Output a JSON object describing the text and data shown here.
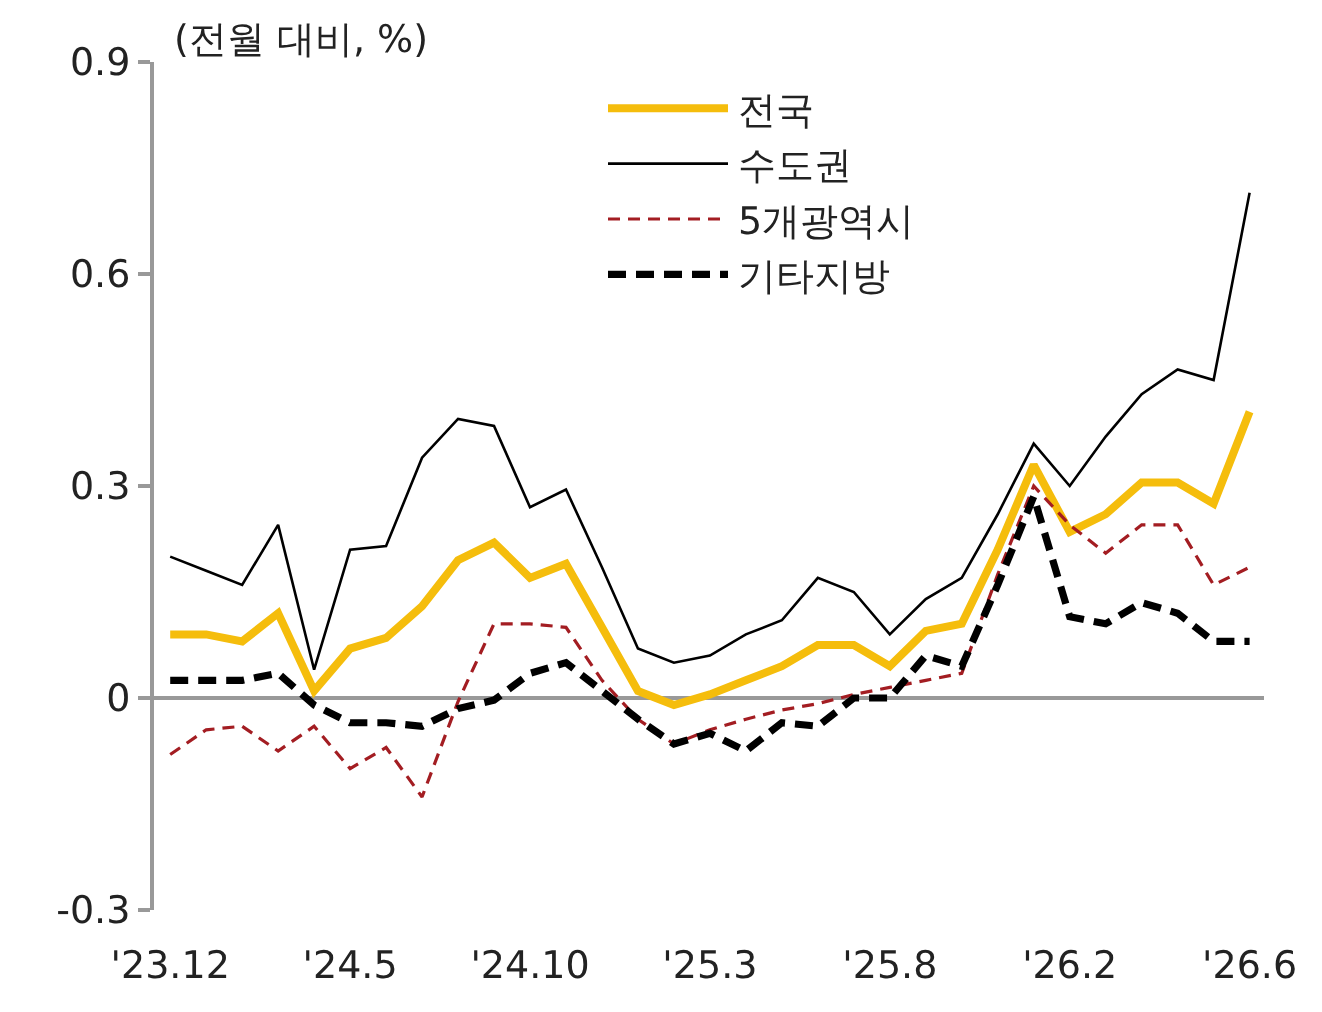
{
  "chart_data": {
    "type": "line",
    "annotations": [
      "(전월 대비, %)"
    ],
    "categories": [
      "'23.12",
      null,
      null,
      null,
      null,
      "'24.5",
      null,
      null,
      null,
      null,
      "'24.10",
      null,
      null,
      null,
      null,
      "'25.3",
      null,
      null,
      null,
      null,
      "'25.8",
      null,
      null,
      null,
      null,
      "'26.2",
      null,
      null,
      null,
      null,
      "'26.6"
    ],
    "series": [
      {
        "name": "전국",
        "color": "#f5bd0c",
        "line_style": "solid",
        "values": [
          0.09,
          0.09,
          0.08,
          0.12,
          0.01,
          0.07,
          0.085,
          0.13,
          0.195,
          0.22,
          0.17,
          0.19,
          0.1,
          0.01,
          -0.01,
          0.005,
          0.025,
          0.045,
          0.075,
          0.075,
          0.045,
          0.095,
          0.105,
          0.21,
          0.33,
          0.235,
          0.26,
          0.305,
          0.305,
          0.275,
          0.405
        ]
      },
      {
        "name": "수도권",
        "color": "#000000",
        "line_style": "solid",
        "values": [
          0.2,
          0.18,
          0.16,
          0.245,
          0.04,
          0.21,
          0.215,
          0.34,
          0.395,
          0.385,
          0.27,
          0.295,
          0.185,
          0.07,
          0.05,
          0.06,
          0.09,
          0.11,
          0.17,
          0.15,
          0.09,
          0.14,
          0.17,
          0.26,
          0.36,
          0.3,
          0.37,
          0.43,
          0.465,
          0.45,
          0.715
        ]
      },
      {
        "name": "5개광역시",
        "color": "#a31d22",
        "line_style": "dashed",
        "values": [
          -0.08,
          -0.045,
          -0.04,
          -0.075,
          -0.04,
          -0.1,
          -0.07,
          -0.14,
          -0.005,
          0.105,
          0.105,
          0.1,
          0.025,
          -0.03,
          -0.065,
          -0.045,
          -0.03,
          -0.017,
          -0.008,
          0.005,
          0.015,
          0.025,
          0.035,
          0.175,
          0.3,
          0.245,
          0.205,
          0.245,
          0.245,
          0.16,
          0.185
        ]
      },
      {
        "name": "기타지방",
        "color": "#000000",
        "line_style": "dashed",
        "values": [
          0.025,
          0.025,
          0.025,
          0.035,
          -0.01,
          -0.035,
          -0.035,
          -0.04,
          -0.015,
          -0.003,
          0.035,
          0.05,
          0.01,
          -0.03,
          -0.065,
          -0.05,
          -0.075,
          -0.035,
          -0.04,
          0,
          0,
          0.06,
          0.045,
          0.16,
          0.285,
          0.115,
          0.105,
          0.135,
          0.12,
          0.08,
          0.08
        ]
      }
    ],
    "ylim": [
      -0.3,
      0.9
    ],
    "yticks": [
      {
        "value": -0.3,
        "label": "-0.3"
      },
      0,
      0.3,
      0.6,
      0.9
    ],
    "legend": "top",
    "marker": "none"
  }
}
